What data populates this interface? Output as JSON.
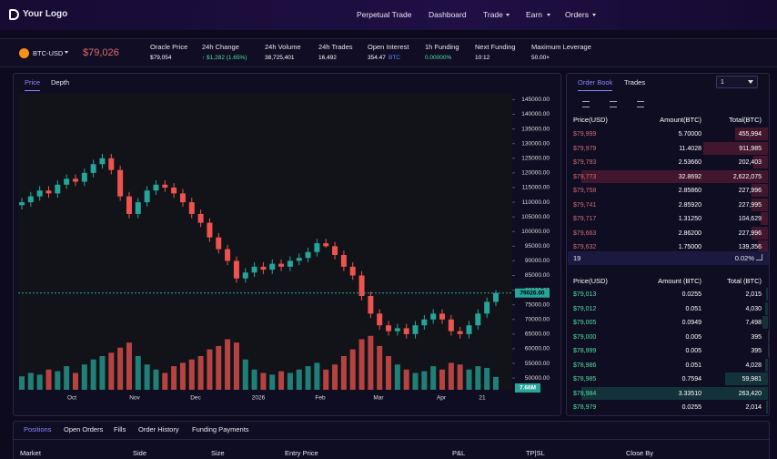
{
  "nav": {
    "logo": "Your Logo",
    "links": [
      "Perpetual Trade",
      "Dashboard",
      "Trade",
      "Earn",
      "Orders"
    ]
  },
  "ticker": {
    "market": "BTC-USD",
    "price": "$79,026",
    "stats": [
      {
        "label": "Oracle Price",
        "value": "$79,054"
      },
      {
        "label": "24h Change",
        "value": "↑ $1,282 (1.65%)"
      },
      {
        "label": "24h Volume",
        "value": "38,725,401"
      },
      {
        "label": "24h Trades",
        "value": "16,492"
      },
      {
        "label": "Open Interest",
        "value": "354.47",
        "unit": "BTC"
      },
      {
        "label": "1h Funding",
        "value": "0.00000%"
      },
      {
        "label": "Next Funding",
        "value": "10:12"
      },
      {
        "label": "Maximum Leverage",
        "value": "50.00×"
      }
    ]
  },
  "chart": {
    "tabs": [
      "Price",
      "Depth"
    ],
    "type": "candlestick",
    "ylim": [
      46000,
      147000
    ],
    "yticks": [
      {
        "value": 145000,
        "label": "145000.00"
      },
      {
        "value": 140000,
        "label": "140000.00"
      },
      {
        "value": 135000,
        "label": "135000.00"
      },
      {
        "value": 130000,
        "label": "130000.00"
      },
      {
        "value": 125000,
        "label": "125000.00"
      },
      {
        "value": 120000,
        "label": "120000.00"
      },
      {
        "value": 115000,
        "label": "115000.00"
      },
      {
        "value": 110000,
        "label": "110000.00"
      },
      {
        "value": 105000,
        "label": "105000.00"
      },
      {
        "value": 100000,
        "label": "100000.00"
      },
      {
        "value": 95000,
        "label": "95000.00"
      },
      {
        "value": 90000,
        "label": "90000.00"
      },
      {
        "value": 85000,
        "label": "85000.00"
      },
      {
        "value": 80000,
        "label": "80000.00"
      },
      {
        "value": 75000,
        "label": "75000.00"
      },
      {
        "value": 70000,
        "label": "70000.00"
      },
      {
        "value": 65000,
        "label": "65000.00"
      },
      {
        "value": 60000,
        "label": "60000.00"
      },
      {
        "value": 55000,
        "label": "55000.00"
      },
      {
        "value": 50000,
        "label": "50000.00"
      }
    ],
    "x_labels": [
      "Oct",
      "Nov",
      "Dec",
      "2026",
      "Feb",
      "Mar",
      "Apr",
      "21"
    ],
    "last_price": {
      "value": 79026,
      "label": "79026.00"
    },
    "volume_label": "7.66M",
    "up_color": "#26a69a",
    "down_color": "#ef5350",
    "open": [
      109000,
      110000,
      112000,
      114000,
      113000,
      116000,
      118000,
      117000,
      120000,
      123000,
      125000,
      121000,
      112000,
      106000,
      110000,
      114000,
      116000,
      115000,
      113000,
      110000,
      106000,
      103000,
      98000,
      94000,
      90000,
      84000,
      86000,
      88000,
      87000,
      89000,
      88000,
      90000,
      91000,
      93000,
      96000,
      95000,
      92000,
      88000,
      85000,
      78000,
      72000,
      68000,
      66000,
      67000,
      65000,
      68000,
      70000,
      72000,
      70000,
      66000,
      65000,
      68000,
      72000,
      76000
    ],
    "high": [
      111500,
      113500,
      115500,
      115500,
      117500,
      119500,
      119500,
      121500,
      124500,
      126500,
      126500,
      122500,
      113500,
      111500,
      115500,
      117500,
      117500,
      116500,
      114500,
      111500,
      107500,
      104500,
      99500,
      95500,
      91500,
      87500,
      89500,
      89500,
      90500,
      90500,
      91500,
      92500,
      94500,
      97500,
      97500,
      96500,
      93500,
      89500,
      86500,
      79500,
      73500,
      69500,
      68500,
      68500,
      69500,
      71500,
      73500,
      73500,
      71500,
      67500,
      69500,
      73500,
      77500,
      80000
    ],
    "low": [
      107500,
      108500,
      110500,
      111500,
      111500,
      114500,
      115500,
      115500,
      118500,
      121500,
      119500,
      110500,
      104500,
      104500,
      108500,
      112500,
      113500,
      111500,
      108500,
      104500,
      101500,
      96500,
      92500,
      88500,
      82500,
      82500,
      84500,
      85500,
      85500,
      86500,
      86500,
      88500,
      89500,
      91500,
      94500,
      90500,
      86500,
      83500,
      76500,
      70500,
      66500,
      64500,
      64500,
      63500,
      63500,
      66500,
      68500,
      68500,
      64500,
      63500,
      63500,
      66500,
      70500,
      74500
    ],
    "close": [
      110000,
      112000,
      114000,
      113000,
      116000,
      118000,
      117000,
      120000,
      123000,
      125000,
      121000,
      112000,
      106000,
      110000,
      114000,
      116000,
      115000,
      113000,
      110000,
      106000,
      103000,
      98000,
      94000,
      90000,
      84000,
      86000,
      88000,
      87000,
      89000,
      88000,
      90000,
      91000,
      93000,
      96000,
      95000,
      92000,
      88000,
      85000,
      78000,
      72000,
      68000,
      66000,
      67000,
      65000,
      68000,
      70000,
      72000,
      70000,
      66000,
      65000,
      68000,
      72000,
      76000,
      79026
    ],
    "volume": [
      8,
      10,
      9,
      12,
      11,
      14,
      10,
      15,
      18,
      20,
      22,
      25,
      28,
      20,
      15,
      12,
      10,
      14,
      16,
      18,
      20,
      24,
      26,
      30,
      28,
      18,
      12,
      10,
      9,
      11,
      10,
      12,
      14,
      16,
      12,
      15,
      20,
      24,
      30,
      32,
      26,
      20,
      15,
      12,
      10,
      11,
      14,
      12,
      16,
      15,
      12,
      14,
      13,
      7.66
    ]
  },
  "order_book": {
    "tabs": [
      "Order Book",
      "Trades"
    ],
    "depth_select": "1",
    "ask_header": [
      "Price(USD)",
      "Amount(BTC)",
      "Total(BTC)"
    ],
    "asks": [
      [
        "$79,999",
        "5.70000",
        "455,994"
      ],
      [
        "$79,979",
        "11.4028",
        "911,985"
      ],
      [
        "$79,793",
        "2.53660",
        "202,403"
      ],
      [
        "$79,773",
        "32.8692",
        "2,622,075"
      ],
      [
        "$79,758",
        "2.85860",
        "227,996"
      ],
      [
        "$79,741",
        "2.85920",
        "227,995"
      ],
      [
        "$79,717",
        "1.31250",
        "104,629"
      ],
      [
        "$79,663",
        "2.86200",
        "227,996"
      ],
      [
        "$79,632",
        "1.75000",
        "139,356"
      ]
    ],
    "spread": "19",
    "spread_pct": "0.02%",
    "bid_header": [
      "Price(USD)",
      "Amount (BTC)",
      "Total (BTC)"
    ],
    "bids": [
      [
        "$79,013",
        "0.0255",
        "2,015"
      ],
      [
        "$79,012",
        "0.051",
        "4,030"
      ],
      [
        "$79,005",
        "0.0949",
        "7,498"
      ],
      [
        "$79,000",
        "0.005",
        "395"
      ],
      [
        "$78,999",
        "0.005",
        "395"
      ],
      [
        "$78,986",
        "0.051",
        "4,028"
      ],
      [
        "$78,985",
        "0.7594",
        "59,981"
      ],
      [
        "$78,984",
        "3.33510",
        "263,420"
      ],
      [
        "$78,979",
        "0.0255",
        "2,014"
      ]
    ]
  },
  "positions": {
    "tabs": [
      "Positions",
      "Open Orders",
      "Fills",
      "Order History",
      "Funding Payments"
    ],
    "columns": [
      "Market",
      "Side",
      "Size",
      "Entry Price",
      "P&L",
      "TP|SL",
      "Close By"
    ]
  }
}
